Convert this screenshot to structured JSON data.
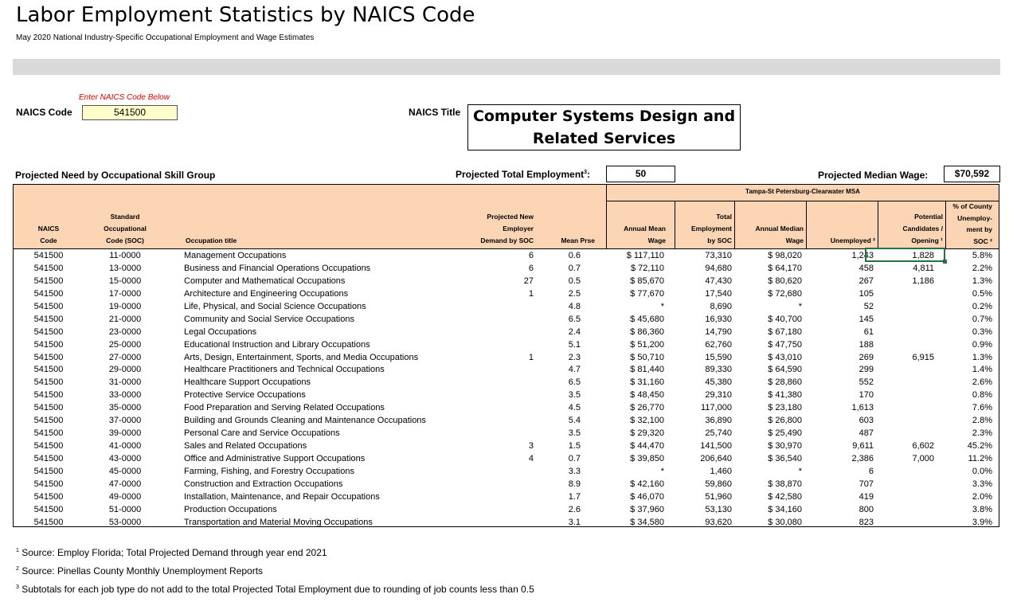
{
  "header": {
    "title": "Labor Employment Statistics by NAICS Code",
    "subtitle": "May 2020 National Industry-Specific Occupational Employment and Wage Estimates"
  },
  "input": {
    "hint": "Enter NAICS Code Below",
    "code_label": "NAICS Code",
    "code_value": "541500",
    "title_label": "NAICS Title",
    "title_line1": "Computer Systems Design and",
    "title_line2": "Related Services"
  },
  "summary": {
    "group_label": "Projected Need by Occupational Skill Group",
    "total_label": "Projected Total Employment",
    "total_sup": "3",
    "total_value": "50",
    "median_label": "Projected Median Wage:",
    "median_value": "$70,592"
  },
  "table": {
    "msa": "Tampa-St Petersburg-Clearwater MSA",
    "headers": {
      "naics": [
        "NAICS",
        "Code"
      ],
      "soc": [
        "Standard",
        "Occupational",
        "Code (SOC)"
      ],
      "title": [
        "Occupation title"
      ],
      "demand": [
        "Projected New",
        "Employer",
        "Demand by SOC"
      ],
      "prse": [
        "Mean Prse"
      ],
      "mean_wage": [
        "Annual Mean",
        "Wage"
      ],
      "employment": [
        "Total",
        "Employment",
        "by SOC"
      ],
      "median_wage": [
        "Annual Median",
        "Wage"
      ],
      "unemployed": [
        "Unemployed ²"
      ],
      "candidates": [
        "Potential",
        "Candidates /",
        "Opening ¹"
      ],
      "pct": [
        "% of County",
        "Unemploy-",
        "ment by",
        "SOC ²"
      ]
    },
    "rows": [
      {
        "naics": "541500",
        "soc": "11-0000",
        "title": "Management Occupations",
        "demand": "6",
        "prse": "0.6",
        "mean": "$ 117,110",
        "emp": "73,310",
        "median": "$ 98,020",
        "unemp": "1,243",
        "cand": "1,828",
        "pct": "5.8%"
      },
      {
        "naics": "541500",
        "soc": "13-0000",
        "title": "Business and Financial Operations Occupations",
        "demand": "6",
        "prse": "0.7",
        "mean": "$ 72,110",
        "emp": "94,680",
        "median": "$ 64,170",
        "unemp": "458",
        "cand": "4,811",
        "pct": "2.2%"
      },
      {
        "naics": "541500",
        "soc": "15-0000",
        "title": "Computer and Mathematical Occupations",
        "demand": "27",
        "prse": "0.5",
        "mean": "$ 85,670",
        "emp": "47,430",
        "median": "$ 80,620",
        "unemp": "267",
        "cand": "1,186",
        "pct": "1.3%"
      },
      {
        "naics": "541500",
        "soc": "17-0000",
        "title": "Architecture and Engineering Occupations",
        "demand": "1",
        "prse": "2.5",
        "mean": "$ 77,670",
        "emp": "17,540",
        "median": "$ 72,680",
        "unemp": "105",
        "cand": "",
        "pct": "0.5%"
      },
      {
        "naics": "541500",
        "soc": "19-0000",
        "title": "Life, Physical, and Social Science Occupations",
        "demand": "",
        "prse": "4.8",
        "mean": "*",
        "emp": "8,690",
        "median": "*",
        "unemp": "52",
        "cand": "",
        "pct": "0.2%"
      },
      {
        "naics": "541500",
        "soc": "21-0000",
        "title": "Community and Social Service Occupations",
        "demand": "",
        "prse": "6.5",
        "mean": "$ 45,680",
        "emp": "16,930",
        "median": "$ 40,700",
        "unemp": "145",
        "cand": "",
        "pct": "0.7%"
      },
      {
        "naics": "541500",
        "soc": "23-0000",
        "title": "Legal Occupations",
        "demand": "",
        "prse": "2.4",
        "mean": "$ 86,360",
        "emp": "14,790",
        "median": "$ 67,180",
        "unemp": "61",
        "cand": "",
        "pct": "0.3%"
      },
      {
        "naics": "541500",
        "soc": "25-0000",
        "title": "Educational Instruction and Library Occupations",
        "demand": "",
        "prse": "5.1",
        "mean": "$ 51,200",
        "emp": "62,760",
        "median": "$ 47,750",
        "unemp": "188",
        "cand": "",
        "pct": "0.9%"
      },
      {
        "naics": "541500",
        "soc": "27-0000",
        "title": "Arts, Design, Entertainment, Sports, and Media Occupations",
        "demand": "1",
        "prse": "2.3",
        "mean": "$ 50,710",
        "emp": "15,590",
        "median": "$ 43,010",
        "unemp": "269",
        "cand": "6,915",
        "pct": "1.3%"
      },
      {
        "naics": "541500",
        "soc": "29-0000",
        "title": "Healthcare Practitioners and Technical Occupations",
        "demand": "",
        "prse": "4.7",
        "mean": "$ 81,440",
        "emp": "89,330",
        "median": "$ 64,590",
        "unemp": "299",
        "cand": "",
        "pct": "1.4%"
      },
      {
        "naics": "541500",
        "soc": "31-0000",
        "title": "Healthcare Support Occupations",
        "demand": "",
        "prse": "6.5",
        "mean": "$ 31,160",
        "emp": "45,380",
        "median": "$ 28,860",
        "unemp": "552",
        "cand": "",
        "pct": "2.6%"
      },
      {
        "naics": "541500",
        "soc": "33-0000",
        "title": "Protective Service Occupations",
        "demand": "",
        "prse": "3.5",
        "mean": "$ 48,450",
        "emp": "29,310",
        "median": "$ 41,380",
        "unemp": "170",
        "cand": "",
        "pct": "0.8%"
      },
      {
        "naics": "541500",
        "soc": "35-0000",
        "title": "Food Preparation and Serving Related Occupations",
        "demand": "",
        "prse": "4.5",
        "mean": "$ 26,770",
        "emp": "117,000",
        "median": "$ 23,180",
        "unemp": "1,613",
        "cand": "",
        "pct": "7.6%"
      },
      {
        "naics": "541500",
        "soc": "37-0000",
        "title": "Building and Grounds Cleaning and Maintenance Occupations",
        "demand": "",
        "prse": "5.4",
        "mean": "$ 32,100",
        "emp": "36,890",
        "median": "$ 26,800",
        "unemp": "603",
        "cand": "",
        "pct": "2.8%"
      },
      {
        "naics": "541500",
        "soc": "39-0000",
        "title": "Personal Care and Service Occupations",
        "demand": "",
        "prse": "3.5",
        "mean": "$ 29,320",
        "emp": "25,740",
        "median": "$ 25,490",
        "unemp": "487",
        "cand": "",
        "pct": "2.3%"
      },
      {
        "naics": "541500",
        "soc": "41-0000",
        "title": "Sales and Related Occupations",
        "demand": "3",
        "prse": "1.5",
        "mean": "$ 44,470",
        "emp": "141,500",
        "median": "$ 30,970",
        "unemp": "9,611",
        "cand": "6,602",
        "pct": "45.2%"
      },
      {
        "naics": "541500",
        "soc": "43-0000",
        "title": "Office and Administrative Support Occupations",
        "demand": "4",
        "prse": "0.7",
        "mean": "$ 39,850",
        "emp": "206,640",
        "median": "$ 36,540",
        "unemp": "2,386",
        "cand": "7,000",
        "pct": "11.2%"
      },
      {
        "naics": "541500",
        "soc": "45-0000",
        "title": "Farming, Fishing, and Forestry Occupations",
        "demand": "",
        "prse": "3.3",
        "mean": "*",
        "emp": "1,460",
        "median": "*",
        "unemp": "6",
        "cand": "",
        "pct": "0.0%"
      },
      {
        "naics": "541500",
        "soc": "47-0000",
        "title": "Construction and Extraction Occupations",
        "demand": "",
        "prse": "8.9",
        "mean": "$ 42,160",
        "emp": "59,860",
        "median": "$ 38,870",
        "unemp": "707",
        "cand": "",
        "pct": "3.3%"
      },
      {
        "naics": "541500",
        "soc": "49-0000",
        "title": "Installation, Maintenance, and Repair Occupations",
        "demand": "",
        "prse": "1.7",
        "mean": "$ 46,070",
        "emp": "51,960",
        "median": "$ 42,580",
        "unemp": "419",
        "cand": "",
        "pct": "2.0%"
      },
      {
        "naics": "541500",
        "soc": "51-0000",
        "title": "Production Occupations",
        "demand": "",
        "prse": "2.6",
        "mean": "$ 37,960",
        "emp": "53,130",
        "median": "$ 34,160",
        "unemp": "800",
        "cand": "",
        "pct": "3.8%"
      },
      {
        "naics": "541500",
        "soc": "53-0000",
        "title": "Transportation and Material Moving Occupations",
        "demand": "",
        "prse": "3.1",
        "mean": "$ 34,580",
        "emp": "93,620",
        "median": "$ 30,080",
        "unemp": "823",
        "cand": "",
        "pct": "3.9%"
      }
    ]
  },
  "footnotes": [
    {
      "mark": "1",
      "text": "Source: Employ Florida; Total Projected Demand through year end 2021"
    },
    {
      "mark": "2",
      "text": "Source: Pinellas County Monthly Unemployment Reports"
    },
    {
      "mark": "3",
      "text": "Subtotals for each job type do not add to the total Projected Total Employment due to rounding of job counts less than 0.5"
    }
  ]
}
